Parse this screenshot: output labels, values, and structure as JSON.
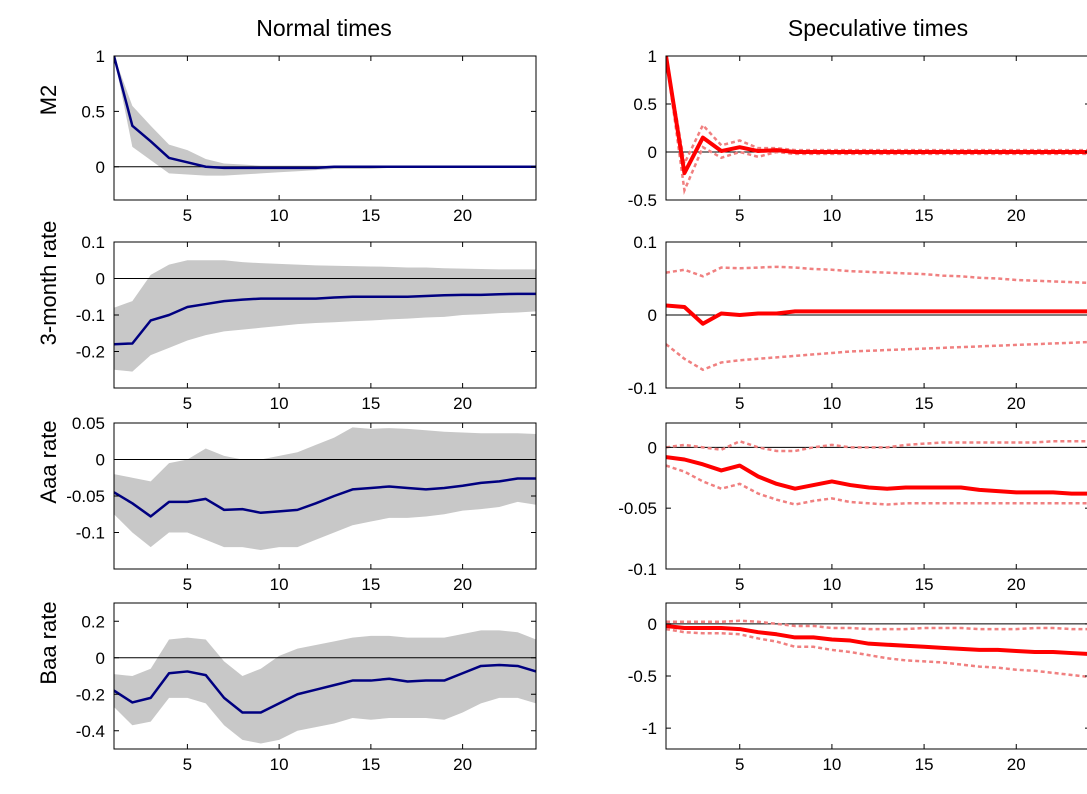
{
  "figure": {
    "column_titles": [
      "Normal times",
      "Speculative times"
    ],
    "row_labels": [
      "M2",
      "3-month rate",
      "Aaa rate",
      "Baa rate"
    ]
  },
  "chart_data": [
    {
      "type": "line",
      "panel": "M2 / Normal times",
      "xlim": [
        1,
        24
      ],
      "ylim": [
        -0.3,
        1
      ],
      "xticks": [
        5,
        10,
        15,
        20
      ],
      "yticks": [
        0,
        0.5,
        1
      ],
      "ytick_labels": [
        "0",
        "0.5",
        "1"
      ],
      "grid": false,
      "zero_line": true,
      "band_style": "shaded",
      "color": "#000080",
      "x": [
        1,
        2,
        3,
        4,
        5,
        6,
        7,
        8,
        9,
        10,
        11,
        12,
        13,
        14,
        15,
        16,
        17,
        18,
        19,
        20,
        21,
        22,
        23,
        24
      ],
      "series": [
        {
          "role": "estimate",
          "values": [
            1.0,
            0.37,
            0.23,
            0.08,
            0.04,
            0.0,
            -0.01,
            -0.01,
            -0.01,
            -0.01,
            -0.01,
            -0.01,
            0.0,
            0.0,
            0.0,
            0.0,
            0.0,
            0.0,
            0.0,
            0.0,
            0.0,
            0.0,
            0.0,
            0.0
          ]
        },
        {
          "role": "upper",
          "values": [
            1.0,
            0.55,
            0.37,
            0.2,
            0.15,
            0.07,
            0.03,
            0.02,
            0.01,
            0.01,
            0.01,
            0.01,
            0.01,
            0.01,
            0.01,
            0.01,
            0.01,
            0.0,
            0.0,
            0.0,
            0.0,
            0.0,
            0.0,
            0.0
          ]
        },
        {
          "role": "lower",
          "values": [
            1.0,
            0.18,
            0.06,
            -0.06,
            -0.07,
            -0.08,
            -0.08,
            -0.07,
            -0.06,
            -0.05,
            -0.04,
            -0.03,
            -0.02,
            -0.02,
            -0.02,
            -0.01,
            -0.01,
            -0.01,
            -0.01,
            0.0,
            0.0,
            0.0,
            0.0,
            0.0
          ]
        }
      ]
    },
    {
      "type": "line",
      "panel": "M2 / Speculative times",
      "xlim": [
        1,
        24
      ],
      "ylim": [
        -0.5,
        1
      ],
      "xticks": [
        5,
        10,
        15,
        20
      ],
      "yticks": [
        -0.5,
        0,
        0.5,
        1
      ],
      "ytick_labels": [
        "-0.5",
        "0",
        "0.5",
        "1"
      ],
      "grid": false,
      "zero_line": true,
      "band_style": "dotted",
      "color": "#ff0000",
      "x": [
        1,
        2,
        3,
        4,
        5,
        6,
        7,
        8,
        9,
        10,
        11,
        12,
        13,
        14,
        15,
        16,
        17,
        18,
        19,
        20,
        21,
        22,
        23,
        24
      ],
      "series": [
        {
          "role": "estimate",
          "values": [
            1.0,
            -0.22,
            0.15,
            0.01,
            0.05,
            0.01,
            0.02,
            0.0,
            0.0,
            0.0,
            0.0,
            0.0,
            0.0,
            0.0,
            0.0,
            0.0,
            0.0,
            0.0,
            0.0,
            0.0,
            0.0,
            0.0,
            0.0,
            0.0
          ]
        },
        {
          "role": "upper",
          "values": [
            1.0,
            -0.12,
            0.28,
            0.07,
            0.12,
            0.04,
            0.04,
            0.02,
            0.02,
            0.02,
            0.02,
            0.02,
            0.02,
            0.02,
            0.02,
            0.02,
            0.02,
            0.02,
            0.02,
            0.02,
            0.02,
            0.02,
            0.02,
            0.02
          ]
        },
        {
          "role": "lower",
          "values": [
            1.0,
            -0.4,
            0.05,
            -0.06,
            0.0,
            -0.05,
            0.0,
            -0.02,
            -0.02,
            -0.02,
            -0.02,
            -0.02,
            -0.02,
            -0.02,
            -0.02,
            -0.02,
            -0.02,
            -0.02,
            -0.02,
            -0.02,
            -0.02,
            -0.02,
            -0.02,
            -0.02
          ]
        }
      ]
    },
    {
      "type": "line",
      "panel": "3-month rate / Normal times",
      "xlim": [
        1,
        24
      ],
      "ylim": [
        -0.3,
        0.1
      ],
      "xticks": [
        5,
        10,
        15,
        20
      ],
      "yticks": [
        -0.2,
        -0.1,
        0,
        0.1
      ],
      "ytick_labels": [
        "-0.2",
        "-0.1",
        "0",
        "0.1"
      ],
      "grid": false,
      "zero_line": true,
      "band_style": "shaded",
      "color": "#000080",
      "x": [
        1,
        2,
        3,
        4,
        5,
        6,
        7,
        8,
        9,
        10,
        11,
        12,
        13,
        14,
        15,
        16,
        17,
        18,
        19,
        20,
        21,
        22,
        23,
        24
      ],
      "series": [
        {
          "role": "estimate",
          "values": [
            -0.18,
            -0.178,
            -0.115,
            -0.1,
            -0.078,
            -0.07,
            -0.062,
            -0.058,
            -0.055,
            -0.055,
            -0.055,
            -0.055,
            -0.052,
            -0.05,
            -0.05,
            -0.05,
            -0.05,
            -0.048,
            -0.046,
            -0.045,
            -0.045,
            -0.043,
            -0.042,
            -0.042
          ]
        },
        {
          "role": "upper",
          "values": [
            -0.08,
            -0.062,
            0.01,
            0.038,
            0.05,
            0.05,
            0.05,
            0.045,
            0.042,
            0.04,
            0.038,
            0.036,
            0.035,
            0.034,
            0.033,
            0.032,
            0.03,
            0.03,
            0.028,
            0.027,
            0.026,
            0.025,
            0.025,
            0.025
          ]
        },
        {
          "role": "lower",
          "values": [
            -0.25,
            -0.255,
            -0.21,
            -0.19,
            -0.17,
            -0.155,
            -0.145,
            -0.14,
            -0.135,
            -0.13,
            -0.125,
            -0.122,
            -0.12,
            -0.117,
            -0.115,
            -0.112,
            -0.11,
            -0.107,
            -0.105,
            -0.1,
            -0.098,
            -0.095,
            -0.093,
            -0.09
          ]
        }
      ]
    },
    {
      "type": "line",
      "panel": "3-month rate / Speculative times",
      "xlim": [
        1,
        24
      ],
      "ylim": [
        -0.1,
        0.1
      ],
      "xticks": [
        5,
        10,
        15,
        20
      ],
      "yticks": [
        -0.1,
        0,
        0.1
      ],
      "ytick_labels": [
        "-0.1",
        "0",
        "0.1"
      ],
      "grid": false,
      "zero_line": true,
      "band_style": "dotted",
      "color": "#ff0000",
      "x": [
        1,
        2,
        3,
        4,
        5,
        6,
        7,
        8,
        9,
        10,
        11,
        12,
        13,
        14,
        15,
        16,
        17,
        18,
        19,
        20,
        21,
        22,
        23,
        24
      ],
      "series": [
        {
          "role": "estimate",
          "values": [
            0.013,
            0.011,
            -0.012,
            0.002,
            0.0,
            0.002,
            0.002,
            0.005,
            0.005,
            0.005,
            0.005,
            0.005,
            0.005,
            0.005,
            0.005,
            0.005,
            0.005,
            0.005,
            0.005,
            0.005,
            0.005,
            0.005,
            0.005,
            0.005
          ]
        },
        {
          "role": "upper",
          "values": [
            0.058,
            0.062,
            0.053,
            0.065,
            0.064,
            0.065,
            0.066,
            0.065,
            0.063,
            0.062,
            0.06,
            0.059,
            0.058,
            0.057,
            0.056,
            0.054,
            0.053,
            0.051,
            0.05,
            0.048,
            0.047,
            0.046,
            0.045,
            0.044
          ]
        },
        {
          "role": "lower",
          "values": [
            -0.04,
            -0.06,
            -0.075,
            -0.065,
            -0.062,
            -0.06,
            -0.058,
            -0.056,
            -0.054,
            -0.052,
            -0.05,
            -0.049,
            -0.048,
            -0.047,
            -0.046,
            -0.045,
            -0.044,
            -0.043,
            -0.042,
            -0.041,
            -0.04,
            -0.039,
            -0.038,
            -0.037
          ]
        }
      ]
    },
    {
      "type": "line",
      "panel": "Aaa rate / Normal times",
      "xlim": [
        1,
        24
      ],
      "ylim": [
        -0.15,
        0.05
      ],
      "xticks": [
        5,
        10,
        15,
        20
      ],
      "yticks": [
        -0.1,
        -0.05,
        0,
        0.05
      ],
      "ytick_labels": [
        "-0.1",
        "-0.05",
        "0",
        "0.05"
      ],
      "grid": false,
      "zero_line": true,
      "band_style": "shaded",
      "color": "#000080",
      "x": [
        1,
        2,
        3,
        4,
        5,
        6,
        7,
        8,
        9,
        10,
        11,
        12,
        13,
        14,
        15,
        16,
        17,
        18,
        19,
        20,
        21,
        22,
        23,
        24
      ],
      "series": [
        {
          "role": "estimate",
          "values": [
            -0.045,
            -0.06,
            -0.078,
            -0.058,
            -0.058,
            -0.054,
            -0.069,
            -0.068,
            -0.073,
            -0.071,
            -0.069,
            -0.06,
            -0.05,
            -0.041,
            -0.039,
            -0.037,
            -0.039,
            -0.041,
            -0.039,
            -0.036,
            -0.032,
            -0.03,
            -0.026,
            -0.026
          ]
        },
        {
          "role": "upper",
          "values": [
            -0.02,
            -0.025,
            -0.03,
            -0.005,
            0.0,
            0.015,
            0.005,
            0.0,
            0.0,
            0.005,
            0.01,
            0.02,
            0.03,
            0.044,
            0.042,
            0.043,
            0.042,
            0.04,
            0.038,
            0.037,
            0.036,
            0.036,
            0.036,
            0.035
          ]
        },
        {
          "role": "lower",
          "values": [
            -0.075,
            -0.1,
            -0.12,
            -0.1,
            -0.1,
            -0.11,
            -0.12,
            -0.12,
            -0.124,
            -0.12,
            -0.12,
            -0.11,
            -0.1,
            -0.09,
            -0.085,
            -0.08,
            -0.08,
            -0.078,
            -0.075,
            -0.07,
            -0.068,
            -0.065,
            -0.058,
            -0.062
          ]
        }
      ]
    },
    {
      "type": "line",
      "panel": "Aaa rate / Speculative times",
      "xlim": [
        1,
        24
      ],
      "ylim": [
        -0.1,
        0.02
      ],
      "xticks": [
        5,
        10,
        15,
        20
      ],
      "yticks": [
        -0.1,
        -0.05,
        0
      ],
      "ytick_labels": [
        "-0.1",
        "-0.05",
        "0"
      ],
      "grid": false,
      "zero_line": true,
      "band_style": "dotted",
      "color": "#ff0000",
      "x": [
        1,
        2,
        3,
        4,
        5,
        6,
        7,
        8,
        9,
        10,
        11,
        12,
        13,
        14,
        15,
        16,
        17,
        18,
        19,
        20,
        21,
        22,
        23,
        24
      ],
      "series": [
        {
          "role": "estimate",
          "values": [
            -0.008,
            -0.01,
            -0.014,
            -0.019,
            -0.015,
            -0.024,
            -0.03,
            -0.034,
            -0.031,
            -0.028,
            -0.031,
            -0.033,
            -0.034,
            -0.033,
            -0.033,
            -0.033,
            -0.033,
            -0.035,
            -0.036,
            -0.037,
            -0.037,
            -0.037,
            -0.038,
            -0.038
          ]
        },
        {
          "role": "upper",
          "values": [
            0.0,
            0.002,
            0.0,
            -0.002,
            0.005,
            0.0,
            -0.003,
            -0.003,
            0.0,
            0.002,
            0.0,
            0.0,
            0.0,
            0.002,
            0.003,
            0.004,
            0.004,
            0.004,
            0.004,
            0.004,
            0.004,
            0.005,
            0.005,
            0.005
          ]
        },
        {
          "role": "lower",
          "values": [
            -0.015,
            -0.02,
            -0.028,
            -0.034,
            -0.03,
            -0.038,
            -0.043,
            -0.047,
            -0.044,
            -0.042,
            -0.045,
            -0.046,
            -0.047,
            -0.046,
            -0.046,
            -0.046,
            -0.046,
            -0.046,
            -0.046,
            -0.046,
            -0.046,
            -0.046,
            -0.046,
            -0.046
          ]
        }
      ]
    },
    {
      "type": "line",
      "panel": "Baa rate / Normal times",
      "xlim": [
        1,
        24
      ],
      "ylim": [
        -0.5,
        0.3
      ],
      "xticks": [
        5,
        10,
        15,
        20
      ],
      "yticks": [
        -0.4,
        -0.2,
        0,
        0.2
      ],
      "ytick_labels": [
        "-0.4",
        "-0.2",
        "0",
        "0.2"
      ],
      "grid": false,
      "zero_line": true,
      "band_style": "shaded",
      "color": "#000080",
      "x": [
        1,
        2,
        3,
        4,
        5,
        6,
        7,
        8,
        9,
        10,
        11,
        12,
        13,
        14,
        15,
        16,
        17,
        18,
        19,
        20,
        21,
        22,
        23,
        24
      ],
      "series": [
        {
          "role": "estimate",
          "values": [
            -0.18,
            -0.245,
            -0.22,
            -0.085,
            -0.075,
            -0.095,
            -0.22,
            -0.3,
            -0.3,
            -0.25,
            -0.2,
            -0.175,
            -0.15,
            -0.125,
            -0.125,
            -0.115,
            -0.13,
            -0.125,
            -0.125,
            -0.085,
            -0.045,
            -0.04,
            -0.045,
            -0.075
          ]
        },
        {
          "role": "upper",
          "values": [
            -0.09,
            -0.1,
            -0.06,
            0.1,
            0.11,
            0.1,
            -0.02,
            -0.1,
            -0.06,
            0.01,
            0.05,
            0.07,
            0.09,
            0.11,
            0.12,
            0.12,
            0.11,
            0.11,
            0.11,
            0.13,
            0.15,
            0.15,
            0.14,
            0.1
          ]
        },
        {
          "role": "lower",
          "values": [
            -0.27,
            -0.37,
            -0.35,
            -0.22,
            -0.22,
            -0.25,
            -0.37,
            -0.45,
            -0.47,
            -0.45,
            -0.4,
            -0.38,
            -0.36,
            -0.33,
            -0.34,
            -0.33,
            -0.33,
            -0.33,
            -0.34,
            -0.3,
            -0.25,
            -0.22,
            -0.22,
            -0.25
          ]
        }
      ]
    },
    {
      "type": "line",
      "panel": "Baa rate / Speculative times",
      "xlim": [
        1,
        24
      ],
      "ylim": [
        -1.2,
        0.2
      ],
      "xticks": [
        5,
        10,
        15,
        20
      ],
      "yticks": [
        -1,
        -0.5,
        0
      ],
      "ytick_labels": [
        "-1",
        "-0.5",
        "0"
      ],
      "grid": false,
      "zero_line": true,
      "band_style": "dotted",
      "color": "#ff0000",
      "x": [
        1,
        2,
        3,
        4,
        5,
        6,
        7,
        8,
        9,
        10,
        11,
        12,
        13,
        14,
        15,
        16,
        17,
        18,
        19,
        20,
        21,
        22,
        23,
        24
      ],
      "series": [
        {
          "role": "estimate",
          "values": [
            -0.02,
            -0.04,
            -0.04,
            -0.04,
            -0.05,
            -0.08,
            -0.1,
            -0.13,
            -0.13,
            -0.15,
            -0.16,
            -0.19,
            -0.2,
            -0.21,
            -0.22,
            -0.23,
            -0.24,
            -0.25,
            -0.25,
            -0.26,
            -0.27,
            -0.27,
            -0.28,
            -0.29
          ]
        },
        {
          "role": "upper",
          "values": [
            0.02,
            0.02,
            0.02,
            0.02,
            0.03,
            0.02,
            0.0,
            -0.02,
            -0.02,
            -0.04,
            -0.04,
            -0.05,
            -0.05,
            -0.05,
            -0.04,
            -0.04,
            -0.04,
            -0.05,
            -0.05,
            -0.05,
            -0.04,
            -0.04,
            -0.05,
            -0.05
          ]
        },
        {
          "role": "lower",
          "values": [
            -0.05,
            -0.08,
            -0.09,
            -0.09,
            -0.1,
            -0.14,
            -0.17,
            -0.22,
            -0.22,
            -0.25,
            -0.27,
            -0.3,
            -0.33,
            -0.35,
            -0.36,
            -0.37,
            -0.39,
            -0.41,
            -0.42,
            -0.44,
            -0.45,
            -0.47,
            -0.49,
            -0.51
          ]
        }
      ]
    }
  ]
}
